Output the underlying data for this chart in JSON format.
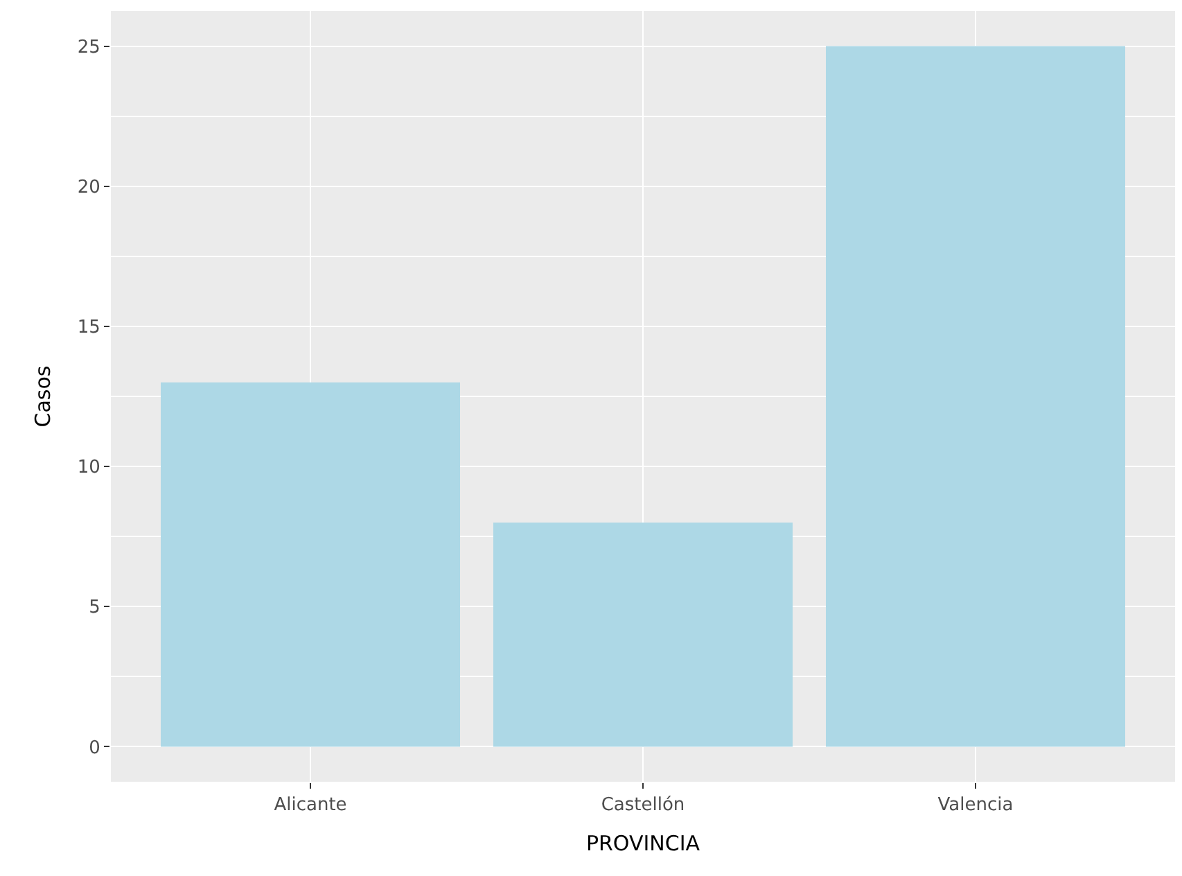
{
  "chart_data": {
    "type": "bar",
    "xlabel": "PROVINCIA",
    "ylabel": "Casos",
    "categories": [
      "Alicante",
      "Castellón",
      "Valencia"
    ],
    "values": [
      13,
      8,
      25
    ],
    "color": "#add8e6",
    "ylim": [
      -1.25,
      26.25
    ],
    "yticks": [
      0,
      5,
      10,
      15,
      20,
      25
    ],
    "grid": true,
    "legend": false
  }
}
